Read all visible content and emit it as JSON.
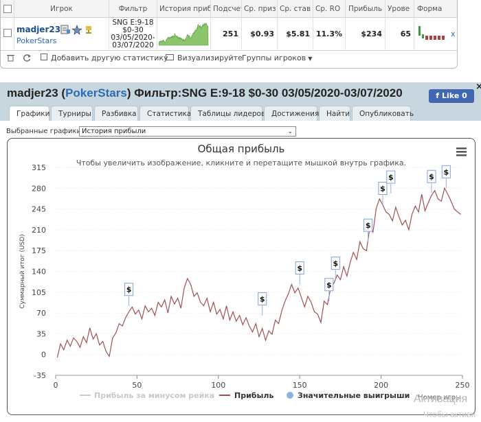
{
  "table": {
    "headers": [
      "Игрок",
      "Фильтр",
      "История приб",
      "Подсчет",
      "Ср. приз",
      "Ср. став",
      "Ср. RO",
      "Прибыль",
      "Урове",
      "Форма"
    ],
    "row": {
      "player": "madjer23",
      "site": "PokerStars",
      "filter": [
        "SNG E:9-18",
        "$0-30",
        "03/05/2020-",
        "03/07/2020"
      ],
      "count": "251",
      "avg_prize": "$0.93",
      "avg_stake": "$5.81",
      "avg_roi": "11.3%",
      "profit": "$234",
      "level": "65",
      "remove": "x"
    }
  },
  "toolbar": {
    "add_stats": "Добавить другую статистику",
    "visualize": "Визуализируйте",
    "player_groups": "Группы игроков"
  },
  "header": {
    "player": "madjer23",
    "site": "PokerStars",
    "filter_text": "Фильтр:SNG E:9-18 $0-30 03/05/2020-03/07/2020",
    "like_label": "Like 0",
    "close": "×"
  },
  "tabs": [
    "Графики",
    "Турниры",
    "Разбивка",
    "Статистика",
    "Таблицы лидеров",
    "Достижения",
    "Найти",
    "Опубликовать"
  ],
  "active_tab": 0,
  "selector": {
    "label": "Выбранные графики:",
    "value": "История прибыли"
  },
  "chart_data": {
    "type": "line",
    "title": "Общая прибыль",
    "subtitle": "Чтобы увеличить изображение, кликните и перетащите мышкой внутрь графика.",
    "ylabel": "Суммарный итог (USD)",
    "xlabel": "Номер игры",
    "ylim": [
      -35,
      315
    ],
    "yticks": [
      -35,
      0,
      35,
      70,
      105,
      140,
      175,
      210,
      245,
      280,
      315
    ],
    "xlim": [
      0,
      250
    ],
    "xticks": [
      0,
      50,
      100,
      150,
      200,
      250
    ],
    "grid": true,
    "legend_position": "bottom",
    "menu_icon": "hamburger-icon",
    "series": [
      {
        "name": "Прибыль за минусом рейка",
        "color": "#cccccc",
        "visible": false,
        "values": []
      },
      {
        "name": "Прибыль",
        "color": "#a05050",
        "x": [
          1,
          3,
          5,
          7,
          9,
          11,
          13,
          15,
          17,
          19,
          21,
          23,
          25,
          27,
          29,
          31,
          33,
          35,
          37,
          39,
          41,
          43,
          45,
          47,
          49,
          51,
          53,
          55,
          57,
          59,
          61,
          63,
          65,
          67,
          69,
          71,
          73,
          75,
          77,
          79,
          81,
          83,
          85,
          87,
          89,
          91,
          93,
          95,
          97,
          99,
          101,
          103,
          105,
          107,
          109,
          111,
          113,
          115,
          117,
          119,
          121,
          123,
          125,
          127,
          129,
          131,
          133,
          135,
          137,
          139,
          141,
          143,
          145,
          147,
          149,
          151,
          153,
          155,
          157,
          159,
          161,
          163,
          165,
          167,
          169,
          171,
          173,
          175,
          177,
          179,
          181,
          183,
          185,
          187,
          189,
          191,
          193,
          195,
          197,
          199,
          201,
          203,
          205,
          207,
          209,
          211,
          213,
          215,
          217,
          219,
          221,
          223,
          225,
          227,
          229,
          231,
          233,
          235,
          237,
          239,
          241,
          243,
          245,
          247,
          249
        ],
        "values": [
          -5,
          18,
          8,
          24,
          14,
          28,
          22,
          12,
          30,
          20,
          45,
          26,
          35,
          16,
          22,
          5,
          -3,
          28,
          36,
          52,
          48,
          62,
          72,
          80,
          68,
          75,
          60,
          82,
          72,
          78,
          66,
          88,
          80,
          92,
          70,
          98,
          85,
          95,
          78,
          112,
          128,
          118,
          98,
          104,
          88,
          82,
          95,
          72,
          88,
          68,
          76,
          60,
          82,
          58,
          72,
          56,
          66,
          50,
          62,
          48,
          38,
          52,
          30,
          44,
          24,
          40,
          34,
          58,
          52,
          74,
          90,
          102,
          118,
          104,
          112,
          96,
          80,
          98,
          88,
          72,
          68,
          54,
          90,
          84,
          112,
          120,
          134,
          126,
          148,
          132,
          155,
          172,
          160,
          190,
          178,
          175,
          212,
          206,
          246,
          262,
          252,
          240,
          236,
          225,
          248,
          232,
          218,
          226,
          210,
          236,
          250,
          240,
          270,
          242,
          256,
          268,
          276,
          262,
          258,
          280,
          270,
          258,
          245,
          240,
          236
        ]
      },
      {
        "name": "Значительные выигрыши",
        "color": "#8fb0e6",
        "marker": "$",
        "points": [
          {
            "x": 45,
            "y": 82
          },
          {
            "x": 127,
            "y": 66
          },
          {
            "x": 150,
            "y": 118
          },
          {
            "x": 168,
            "y": 90
          },
          {
            "x": 172,
            "y": 126
          },
          {
            "x": 192,
            "y": 190
          },
          {
            "x": 201,
            "y": 252
          },
          {
            "x": 206,
            "y": 271
          },
          {
            "x": 231,
            "y": 272
          },
          {
            "x": 240,
            "y": 280
          }
        ]
      }
    ]
  },
  "watermark": {
    "line1": "Активация",
    "line2": "Чтобы активи"
  }
}
